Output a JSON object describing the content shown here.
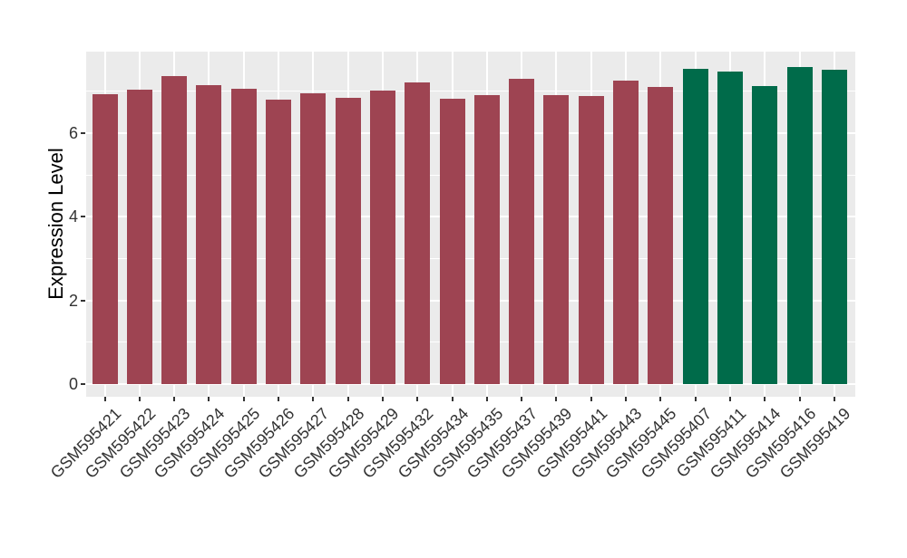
{
  "chart_data": {
    "type": "bar",
    "title": "",
    "ylabel": "Expression Level",
    "xlabel": "",
    "ylim": [
      0,
      7.8
    ],
    "yticks": [
      0,
      2,
      4,
      6
    ],
    "yminor": [
      1,
      3,
      5,
      7
    ],
    "grid": "on",
    "legend_position": "none",
    "categories": [
      "GSM595421",
      "GSM595422",
      "GSM595423",
      "GSM595424",
      "GSM595425",
      "GSM595426",
      "GSM595427",
      "GSM595428",
      "GSM595429",
      "GSM595432",
      "GSM595434",
      "GSM595435",
      "GSM595437",
      "GSM595439",
      "GSM595441",
      "GSM595443",
      "GSM595445",
      "GSM595407",
      "GSM595411",
      "GSM595414",
      "GSM595416",
      "GSM595419"
    ],
    "values": [
      6.93,
      7.03,
      7.36,
      7.14,
      7.06,
      6.8,
      6.95,
      6.84,
      7.01,
      7.21,
      6.82,
      6.92,
      7.29,
      6.9,
      6.88,
      7.26,
      7.11,
      7.53,
      7.47,
      7.12,
      7.58,
      7.51
    ],
    "groups": [
      "A",
      "A",
      "A",
      "A",
      "A",
      "A",
      "A",
      "A",
      "A",
      "A",
      "A",
      "A",
      "A",
      "A",
      "A",
      "A",
      "A",
      "B",
      "B",
      "B",
      "B",
      "B"
    ],
    "group_colors": {
      "A": "#9E4452",
      "B": "#006B4A"
    },
    "panel_background": "#EBEBEB",
    "gridline_color": "#FFFFFF",
    "tick_color": "#333333",
    "tick_label_color": "#333333",
    "axis_title_color": "#000000"
  }
}
